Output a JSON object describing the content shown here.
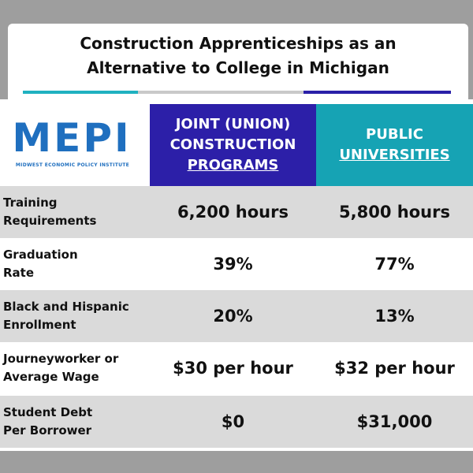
{
  "title": {
    "line1": "Construction Apprenticeships as an",
    "line2": "Alternative to College in Michigan"
  },
  "logo": {
    "name": "MEPI",
    "subtitle": "MIDWEST ECONOMIC POLICY INSTITUTE",
    "color": "#1f6fbf"
  },
  "columns": {
    "joint": {
      "line1": "JOINT (UNION)",
      "line2": "CONSTRUCTION",
      "line3": "PROGRAMS",
      "color": "#2c1fa8"
    },
    "public": {
      "line1": "PUBLIC",
      "line2": "UNIVERSITIES",
      "color": "#16a3b4"
    }
  },
  "rows": [
    {
      "label1": "Training",
      "label2": "Requirements",
      "joint": "6,200 hours",
      "public": "5,800 hours"
    },
    {
      "label1": "Graduation",
      "label2": "Rate",
      "joint": "39%",
      "public": "77%"
    },
    {
      "label1": "Black and Hispanic",
      "label2": "Enrollment",
      "joint": "20%",
      "public": "13%"
    },
    {
      "label1": "Journeyworker or",
      "label2": "Average Wage",
      "joint": "$30 per hour",
      "public": "$32 per hour"
    },
    {
      "label1": "Student Debt",
      "label2": "Per Borrower",
      "joint": "$0",
      "public": "$31,000"
    }
  ]
}
